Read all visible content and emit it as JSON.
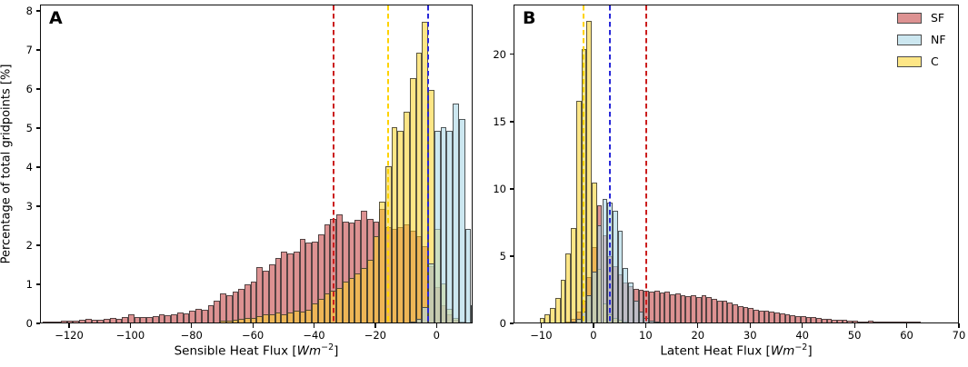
{
  "figure": {
    "background": "#ffffff",
    "colors": {
      "SF": "rgba(205,92,92,0.67)",
      "NF": "rgba(173,216,230,0.62)",
      "C": "rgba(252,210,40,0.56)",
      "edge": "rgba(45,45,45,0.78)"
    },
    "legend": [
      {
        "label": "SF",
        "fill": "rgba(205,92,92,0.67)",
        "edge": "#4a4a4a"
      },
      {
        "label": "NF",
        "fill": "rgba(173,216,230,0.62)",
        "edge": "#4a4a4a"
      },
      {
        "label": "C",
        "fill": "rgba(252,210,40,0.56)",
        "edge": "#4a4a4a"
      }
    ],
    "legend_position": "top-right"
  },
  "chart_data": [
    {
      "type": "histogram",
      "panel_label": "A",
      "title": "",
      "xlabel_parts": {
        "pre": "Sensible Heat Flux [",
        "math": "Wm",
        "sup": "−2",
        "post": "]"
      },
      "ylabel": "Percentage of total gridpoints [%]",
      "xlim": [
        -129.5,
        11.8
      ],
      "ylim": [
        0,
        8.16
      ],
      "xticks": [
        -120,
        -100,
        -80,
        -60,
        -40,
        -20,
        0
      ],
      "xtick_labels": [
        "−120",
        "−100",
        "−80",
        "−60",
        "−40",
        "−20",
        "0"
      ],
      "yticks": [
        0,
        1,
        2,
        3,
        4,
        5,
        6,
        7,
        8
      ],
      "ytick_labels": [
        "0",
        "1",
        "2",
        "3",
        "4",
        "5",
        "6",
        "7",
        "8"
      ],
      "grid": false,
      "bin_width": 2,
      "series": [
        {
          "name": "SF",
          "x_start": -128,
          "values": [
            0.02,
            0.03,
            0.02,
            0.04,
            0.05,
            0.04,
            0.06,
            0.09,
            0.07,
            0.06,
            0.1,
            0.12,
            0.09,
            0.13,
            0.22,
            0.14,
            0.13,
            0.15,
            0.16,
            0.2,
            0.18,
            0.22,
            0.26,
            0.24,
            0.31,
            0.35,
            0.32,
            0.44,
            0.55,
            0.75,
            0.7,
            0.78,
            0.86,
            0.98,
            1.05,
            1.42,
            1.32,
            1.49,
            1.66,
            1.81,
            1.76,
            1.81,
            2.13,
            2.04,
            2.08,
            2.25,
            2.52,
            2.65,
            2.77,
            2.58,
            2.55,
            2.62,
            2.85,
            2.66,
            2.58,
            2.9,
            2.45,
            2.4,
            2.45,
            2.5,
            2.35,
            2.2,
            1.95,
            1.45,
            0.9,
            0.45,
            0.2,
            0.08,
            0.03
          ]
        },
        {
          "name": "C",
          "x_start": -70,
          "values": [
            0.04,
            0.05,
            0.06,
            0.1,
            0.12,
            0.12,
            0.16,
            0.22,
            0.2,
            0.25,
            0.22,
            0.26,
            0.3,
            0.28,
            0.32,
            0.48,
            0.6,
            0.75,
            0.82,
            0.88,
            1.05,
            1.15,
            1.25,
            1.4,
            1.6,
            2.2,
            3.1,
            4.0,
            5.0,
            4.9,
            5.4,
            6.25,
            6.9,
            7.7,
            5.95,
            2.4,
            1.0,
            0.35,
            0.12
          ]
        },
        {
          "name": "NF",
          "x_start": -8,
          "values": [
            0.03,
            0.1,
            0.4,
            1.5,
            4.9,
            5.0,
            4.9,
            5.6,
            5.2,
            2.4,
            0.45
          ]
        }
      ],
      "mean_lines": [
        {
          "series": "SF",
          "x": -34,
          "color": "#cb1d1d",
          "style": "dashed"
        },
        {
          "series": "C",
          "x": -16,
          "color": "#ffd300",
          "style": "dashed"
        },
        {
          "series": "NF",
          "x": -3,
          "color": "#2727d8",
          "style": "dashed"
        }
      ]
    },
    {
      "type": "histogram",
      "panel_label": "B",
      "title": "",
      "xlabel_parts": {
        "pre": "Latent Heat Flux [",
        "math": "Wm",
        "sup": "−2",
        "post": "]"
      },
      "ylabel": "",
      "xlim": [
        -15.3,
        70
      ],
      "ylim": [
        0,
        23.7
      ],
      "xticks": [
        -10,
        0,
        10,
        20,
        30,
        40,
        50,
        60,
        70
      ],
      "xtick_labels": [
        "−10",
        "0",
        "10",
        "20",
        "30",
        "40",
        "50",
        "60",
        "70"
      ],
      "yticks": [
        0,
        5,
        10,
        15,
        20
      ],
      "ytick_labels": [
        "0",
        "5",
        "10",
        "15",
        "20"
      ],
      "grid": false,
      "bin_width": 1,
      "series": [
        {
          "name": "SF",
          "x_start": -5,
          "values": [
            0.1,
            0.3,
            0.8,
            1.6,
            3.4,
            5.6,
            8.7,
            6.5,
            4.9,
            4.2,
            3.6,
            3.0,
            2.7,
            2.5,
            2.4,
            2.35,
            2.3,
            2.35,
            2.2,
            2.3,
            2.1,
            2.15,
            2.05,
            1.95,
            2.0,
            1.9,
            2.0,
            1.9,
            1.75,
            1.65,
            1.6,
            1.5,
            1.35,
            1.25,
            1.15,
            1.05,
            0.95,
            0.9,
            0.85,
            0.8,
            0.75,
            0.65,
            0.6,
            0.55,
            0.5,
            0.45,
            0.4,
            0.38,
            0.32,
            0.3,
            0.25,
            0.2,
            0.18,
            0.2,
            0.15,
            0.12,
            0.1,
            0.1,
            0.15,
            0.07,
            0.05,
            0.04,
            0.03,
            0.03,
            0.04,
            0.1,
            0.03,
            0.02
          ]
        },
        {
          "name": "C",
          "x_start": -10,
          "values": [
            0.35,
            0.6,
            1.1,
            1.8,
            3.2,
            5.1,
            7.0,
            16.5,
            20.3,
            22.4,
            10.4,
            4.0,
            1.4,
            0.6,
            0.35,
            0.2,
            0.1
          ]
        },
        {
          "name": "NF",
          "x_start": -4,
          "values": [
            0.08,
            0.25,
            0.8,
            2.0,
            3.8,
            7.2,
            9.2,
            8.9,
            8.3,
            6.8,
            4.05,
            3.0,
            1.6,
            0.8,
            0.35,
            0.15,
            0.05
          ]
        }
      ],
      "mean_lines": [
        {
          "series": "C",
          "x": -2,
          "color": "#ffd300",
          "style": "dashed"
        },
        {
          "series": "NF",
          "x": 3,
          "color": "#2727d8",
          "style": "dashed"
        },
        {
          "series": "SF",
          "x": 10,
          "color": "#cb1d1d",
          "style": "dashed"
        }
      ]
    }
  ]
}
